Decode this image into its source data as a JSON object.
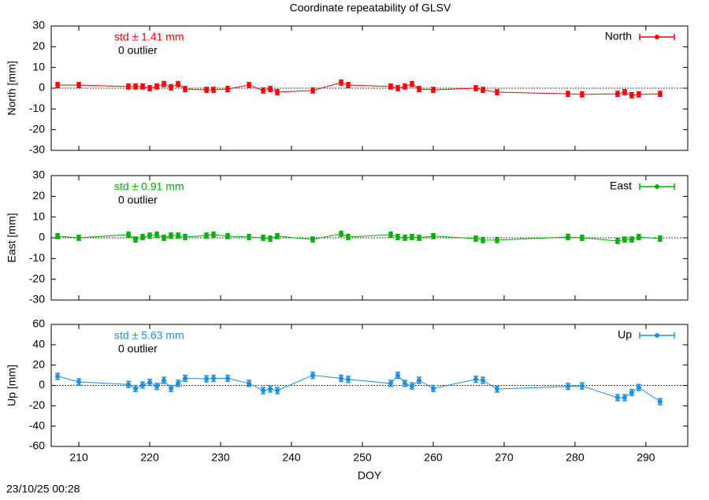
{
  "title": "Coordinate repeatability of GLSV",
  "timestamp": "23/10/25 00:28",
  "chart_data": [
    {
      "type": "line",
      "ylabel": "North [mm]",
      "annotations": [
        "std ± 1.41 mm",
        "0 outlier"
      ],
      "x": [
        207,
        210,
        217,
        218,
        219,
        220,
        221,
        222,
        223,
        224,
        225,
        228,
        229,
        231,
        234,
        236,
        237,
        238,
        243,
        247,
        248,
        254,
        255,
        256,
        257,
        258,
        260,
        266,
        267,
        269,
        279,
        281,
        286,
        287,
        288,
        289,
        292
      ],
      "series": [
        {
          "name": "North",
          "color": "#ff0000",
          "error": 1.2,
          "values": [
            1.5,
            1.5,
            0.8,
            0.8,
            0.8,
            0,
            0.8,
            2,
            0.4,
            2,
            -0.4,
            -0.8,
            -0.8,
            -0.4,
            1.5,
            -1.1,
            -0.4,
            -1.9,
            -1.1,
            2.7,
            1.5,
            0.8,
            0,
            0.8,
            2,
            -0.4,
            -0.8,
            0,
            -0.8,
            -1.9,
            -2.7,
            -3,
            -2.7,
            -1.9,
            -3.4,
            -3,
            -2.7
          ]
        }
      ],
      "xlim": [
        206.1,
        295.9
      ],
      "ylim": [
        -30,
        30
      ],
      "yticks": [
        -30,
        -20,
        -10,
        0,
        10,
        20,
        30
      ],
      "zero_line": true,
      "legend": "upper right"
    },
    {
      "type": "line",
      "ylabel": "East [mm]",
      "annotations": [
        "std ± 0.91 mm",
        "0 outlier"
      ],
      "x": [
        207,
        210,
        217,
        218,
        219,
        220,
        221,
        222,
        223,
        224,
        225,
        228,
        229,
        231,
        234,
        236,
        237,
        238,
        243,
        247,
        248,
        254,
        255,
        256,
        257,
        258,
        260,
        266,
        267,
        269,
        279,
        281,
        286,
        287,
        288,
        289,
        292
      ],
      "series": [
        {
          "name": "East",
          "color": "#00b000",
          "error": 1.2,
          "values": [
            0.8,
            0,
            1.5,
            -0.8,
            0.4,
            1.1,
            1.5,
            0,
            1.1,
            1.1,
            0.4,
            1.1,
            1.5,
            0.8,
            0.4,
            0,
            -0.4,
            0.8,
            -0.8,
            1.9,
            0.4,
            1.5,
            0.4,
            0,
            0.4,
            0,
            0.8,
            -0.4,
            -1.1,
            -1.1,
            0.4,
            0,
            -1.5,
            -0.8,
            -0.8,
            0.4,
            -0.4
          ]
        }
      ],
      "xlim": [
        206.1,
        295.9
      ],
      "ylim": [
        -30,
        30
      ],
      "yticks": [
        -30,
        -20,
        -10,
        0,
        10,
        20,
        30
      ],
      "zero_line": true,
      "legend": "upper right"
    },
    {
      "type": "line",
      "ylabel": "Up [mm]",
      "xlabel": "DOY",
      "annotations": [
        "std ± 5.63 mm",
        "0 outlier"
      ],
      "x": [
        207,
        210,
        217,
        218,
        219,
        220,
        221,
        222,
        223,
        224,
        225,
        228,
        229,
        231,
        234,
        236,
        237,
        238,
        243,
        247,
        248,
        254,
        255,
        256,
        257,
        258,
        260,
        266,
        267,
        269,
        279,
        281,
        286,
        287,
        288,
        289,
        292
      ],
      "series": [
        {
          "name": "Up",
          "color": "#1e8fe0",
          "error": 3,
          "values": [
            9,
            3.5,
            1,
            -3,
            0.5,
            3,
            -1,
            5,
            -3,
            2,
            7,
            6.5,
            7,
            7,
            2,
            -5,
            -3.5,
            -5,
            10,
            7,
            6,
            2,
            10,
            2,
            -0.5,
            5,
            -3,
            6,
            5,
            -3.5,
            -1,
            -0.5,
            -12,
            -12,
            -7,
            -2,
            -16
          ]
        }
      ],
      "xlim": [
        206.1,
        295.9
      ],
      "xticks": [
        210,
        220,
        230,
        240,
        250,
        260,
        270,
        280,
        290
      ],
      "ylim": [
        -60,
        60
      ],
      "yticks": [
        -60,
        -40,
        -20,
        0,
        20,
        40,
        60
      ],
      "zero_line": true,
      "legend": "upper right"
    }
  ]
}
